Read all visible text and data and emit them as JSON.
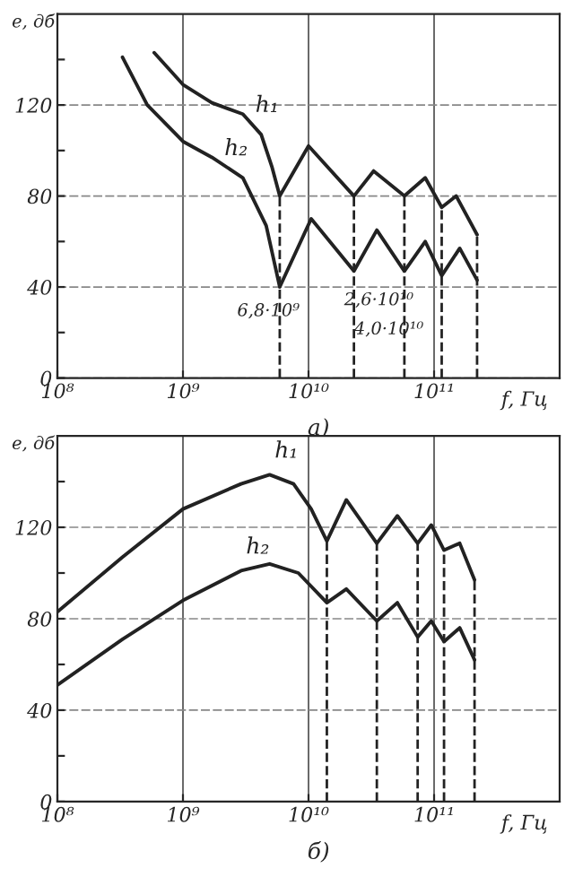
{
  "chart_data": [
    {
      "type": "line",
      "xlabel": "f, Гц",
      "ylabel": "e, дб",
      "log": "x",
      "grid": true,
      "line_style": "solid",
      "marker": "none",
      "tick_labels": true,
      "xlim": [
        100000000.0,
        1000000000000.0
      ],
      "ylim": [
        0,
        160
      ],
      "xticks": [
        {
          "value": 100000000.0,
          "label": "10⁸"
        },
        {
          "value": 1000000000.0,
          "label": "10⁹"
        },
        {
          "value": 10000000000.0,
          "label": "10¹⁰"
        },
        {
          "value": 100000000000.0,
          "label": "10¹¹"
        }
      ],
      "yticks": [
        0,
        {
          "value": 20,
          "label": null
        },
        40,
        {
          "value": 60,
          "label": null
        },
        80,
        {
          "value": 100,
          "label": null
        },
        120,
        {
          "value": 140,
          "label": null
        }
      ],
      "series": [
        {
          "name": "h₁",
          "color": "#222222",
          "x": [
            590000000.0,
            1000000000.0,
            1700000000.0,
            3000000000.0,
            4200000000.0,
            5100000000.0,
            5900000000.0,
            10000000000.0,
            23000000000.0,
            33000000000.0,
            58000000000.0,
            85000000000.0,
            115000000000.0,
            150000000000.0,
            220000000000.0
          ],
          "values": [
            143,
            129,
            121,
            116,
            107,
            93,
            80,
            102,
            80,
            91,
            80,
            88,
            75,
            80,
            63
          ]
        },
        {
          "name": "h₂",
          "color": "#222222",
          "x": [
            330000000.0,
            520000000.0,
            1000000000.0,
            1700000000.0,
            3000000000.0,
            4600000000.0,
            5900000000.0,
            10500000000.0,
            23000000000.0,
            35000000000.0,
            58000000000.0,
            85000000000.0,
            115000000000.0,
            160000000000.0,
            220000000000.0
          ],
          "values": [
            141,
            120,
            104,
            97,
            88,
            67,
            40,
            70,
            47,
            65,
            47,
            60,
            45,
            57,
            43
          ]
        }
      ],
      "ref_lines": [
        {
          "axis": "x",
          "value": 5900000000.0,
          "line_style": "dashed",
          "color": "#222222"
        },
        {
          "axis": "x",
          "value": 23000000000.0,
          "line_style": "dashed",
          "color": "#222222"
        },
        {
          "axis": "x",
          "value": 58000000000.0,
          "line_style": "dashed",
          "color": "#222222"
        },
        {
          "axis": "x",
          "value": 115000000000.0,
          "line_style": "dashed",
          "color": "#222222"
        },
        {
          "axis": "x",
          "value": 220000000000.0,
          "line_style": "dashed",
          "color": "#222222"
        }
      ],
      "annotations": [
        "6,8·10⁹",
        "2,6·10¹⁰",
        "4,0·10¹⁰",
        "а)"
      ]
    },
    {
      "type": "line",
      "xlabel": "f, Гц",
      "ylabel": "e, дб",
      "log": "x",
      "grid": true,
      "line_style": "solid",
      "marker": "none",
      "tick_labels": true,
      "xlim": [
        100000000.0,
        1000000000000.0
      ],
      "ylim": [
        0,
        160
      ],
      "xticks": [
        {
          "value": 100000000.0,
          "label": "10⁸"
        },
        {
          "value": 1000000000.0,
          "label": "10⁹"
        },
        {
          "value": 10000000000.0,
          "label": "10¹⁰"
        },
        {
          "value": 100000000000.0,
          "label": "10¹¹"
        }
      ],
      "yticks": [
        0,
        {
          "value": 20,
          "label": null
        },
        40,
        {
          "value": 60,
          "label": null
        },
        80,
        {
          "value": 100,
          "label": null
        },
        120,
        {
          "value": 140,
          "label": null
        }
      ],
      "series": [
        {
          "name": "h₁",
          "color": "#222222",
          "x": [
            100000000.0,
            330000000.0,
            1000000000.0,
            2900000000.0,
            4900000000.0,
            7600000000.0,
            10500000000.0,
            14000000000.0,
            20000000000.0,
            35000000000.0,
            51000000000.0,
            74000000000.0,
            95000000000.0,
            120000000000.0,
            160000000000.0,
            210000000000.0
          ],
          "values": [
            83,
            107,
            128,
            139,
            143,
            139,
            128,
            114,
            132,
            113,
            125,
            113,
            121,
            110,
            113,
            97
          ]
        },
        {
          "name": "h₂",
          "color": "#222222",
          "x": [
            100000000.0,
            330000000.0,
            1000000000.0,
            2900000000.0,
            4900000000.0,
            8300000000.0,
            14000000000.0,
            20000000000.0,
            35000000000.0,
            51000000000.0,
            74000000000.0,
            95000000000.0,
            120000000000.0,
            160000000000.0,
            210000000000.0
          ],
          "values": [
            51,
            71,
            88,
            101,
            104,
            100,
            87,
            93,
            79,
            87,
            72,
            79,
            70,
            76,
            62
          ]
        }
      ],
      "ref_lines": [
        {
          "axis": "x",
          "value": 14000000000.0,
          "line_style": "dashed",
          "color": "#222222"
        },
        {
          "axis": "x",
          "value": 35000000000.0,
          "line_style": "dashed",
          "color": "#222222"
        },
        {
          "axis": "x",
          "value": 74000000000.0,
          "line_style": "dashed",
          "color": "#222222"
        },
        {
          "axis": "x",
          "value": 120000000000.0,
          "line_style": "dashed",
          "color": "#222222"
        },
        {
          "axis": "x",
          "value": 210000000000.0,
          "line_style": "dashed",
          "color": "#222222"
        }
      ],
      "annotations": [
        "б)"
      ]
    }
  ]
}
